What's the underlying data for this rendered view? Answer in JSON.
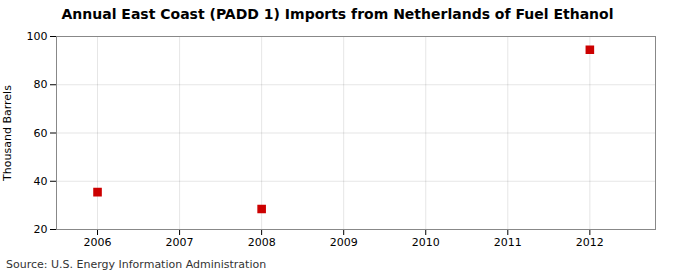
{
  "chart_data": {
    "type": "scatter",
    "title": "Annual East Coast (PADD 1) Imports from Netherlands of Fuel Ethanol",
    "ylabel": "Thousand Barrels",
    "source": "Source: U.S. Energy Information Administration",
    "x": [
      2006,
      2008,
      2012
    ],
    "values": [
      35.5,
      28.5,
      94.5
    ],
    "color": "#cc0000",
    "marker": "square",
    "xlim": [
      2005.5,
      2012.8
    ],
    "ylim": [
      20,
      100
    ],
    "xticks": [
      2006,
      2007,
      2008,
      2009,
      2010,
      2011,
      2012
    ],
    "yticks": [
      20,
      40,
      60,
      80,
      100
    ],
    "grid": true
  }
}
